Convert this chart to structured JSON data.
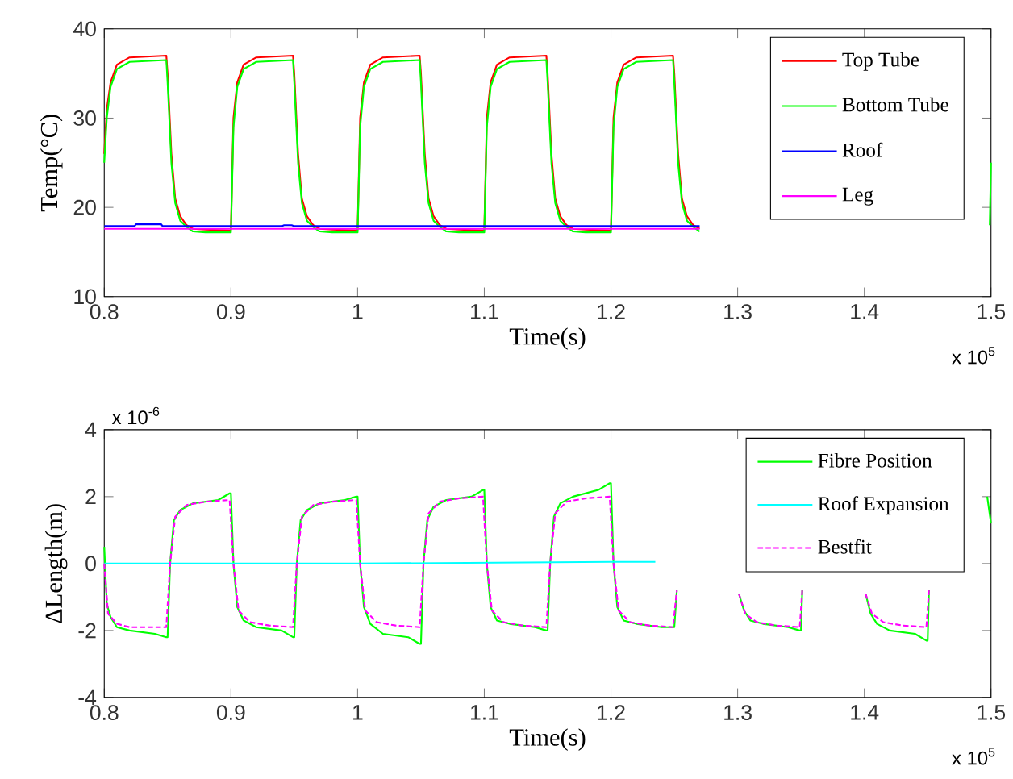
{
  "chart_data": [
    {
      "type": "line",
      "xlabel": "Time(s)",
      "ylabel": "Temp(°C)",
      "xlim": [
        0.8,
        1.5
      ],
      "ylim": [
        10,
        40
      ],
      "xticks": [
        0.8,
        0.9,
        1,
        1.1,
        1.2,
        1.3,
        1.4,
        1.5
      ],
      "yticks": [
        10,
        20,
        30,
        40
      ],
      "legend": "top right",
      "annotations": [
        "x 10$^{5}$"
      ],
      "series": [
        {
          "name": "Top Tube",
          "color": "#ff0000",
          "x": [
            0.8,
            0.802,
            0.805,
            0.81,
            0.82,
            0.849,
            0.85,
            0.853,
            0.856,
            0.86,
            0.865,
            0.87,
            0.88,
            0.899,
            0.9,
            0.902,
            0.905,
            0.91,
            0.92,
            0.949,
            0.95,
            0.953,
            0.956,
            0.96,
            0.965,
            0.97,
            0.98,
            0.999,
            1.0,
            1.002,
            1.005,
            1.01,
            1.02,
            1.049,
            1.05,
            1.053,
            1.056,
            1.06,
            1.065,
            1.07,
            1.08,
            1.099,
            1.1,
            1.102,
            1.105,
            1.11,
            1.12,
            1.149,
            1.15,
            1.153,
            1.156,
            1.16,
            1.165,
            1.17,
            1.18,
            1.199,
            1.2,
            1.202,
            1.205,
            1.21,
            1.22,
            1.249,
            1.25,
            1.253,
            1.256,
            1.26,
            1.265,
            1.27
          ],
          "values": [
            26,
            31,
            34,
            36,
            36.8,
            37,
            35,
            26,
            21,
            19,
            18,
            17.6,
            17.5,
            17.4,
            17.5,
            30,
            34,
            36,
            36.8,
            37,
            35,
            26,
            21,
            19,
            18,
            17.6,
            17.5,
            17.4,
            17.5,
            30,
            34,
            36,
            36.8,
            37,
            35,
            26,
            21,
            19,
            18,
            17.6,
            17.5,
            17.4,
            17.5,
            30,
            34,
            36,
            36.8,
            37,
            35,
            26,
            21,
            19,
            18,
            17.6,
            17.5,
            17.4,
            17.5,
            30,
            34,
            36,
            36.8,
            37,
            35,
            26,
            21,
            19,
            18,
            17.6
          ]
        },
        {
          "name": "Bottom Tube",
          "color": "#00ff00",
          "x": [
            0.8,
            0.802,
            0.805,
            0.81,
            0.82,
            0.849,
            0.85,
            0.853,
            0.856,
            0.86,
            0.865,
            0.87,
            0.88,
            0.899,
            0.9,
            0.902,
            0.905,
            0.91,
            0.92,
            0.949,
            0.95,
            0.953,
            0.956,
            0.96,
            0.965,
            0.97,
            0.98,
            0.999,
            1.0,
            1.002,
            1.005,
            1.01,
            1.02,
            1.049,
            1.05,
            1.053,
            1.056,
            1.06,
            1.065,
            1.07,
            1.08,
            1.099,
            1.1,
            1.102,
            1.105,
            1.11,
            1.12,
            1.149,
            1.15,
            1.153,
            1.156,
            1.16,
            1.165,
            1.17,
            1.18,
            1.199,
            1.2,
            1.202,
            1.205,
            1.21,
            1.22,
            1.249,
            1.25,
            1.253,
            1.256,
            1.26,
            1.265,
            1.27,
            1.28,
            1.499,
            1.5
          ],
          "values": [
            25,
            30,
            33.5,
            35.5,
            36.3,
            36.5,
            34,
            25,
            20.5,
            18.5,
            17.8,
            17.3,
            17.2,
            17.2,
            17.2,
            29,
            33.5,
            35.5,
            36.3,
            36.5,
            34,
            25,
            20.5,
            18.5,
            17.8,
            17.3,
            17.2,
            17.2,
            17.2,
            29,
            33.5,
            35.5,
            36.3,
            36.5,
            34,
            25,
            20.5,
            18.5,
            17.8,
            17.3,
            17.2,
            17.2,
            17.2,
            29,
            33.5,
            35.5,
            36.3,
            36.5,
            34,
            25,
            20.5,
            18.5,
            17.8,
            17.3,
            17.2,
            17.2,
            17.2,
            29,
            33.5,
            35.5,
            36.3,
            36.5,
            34,
            25,
            20.5,
            18.5,
            17.8,
            17.3,
            null,
            18,
            25
          ]
        },
        {
          "name": "Roof",
          "color": "#0000ff",
          "x": [
            0.8,
            0.824,
            0.825,
            0.845,
            0.846,
            0.94,
            0.942,
            0.948,
            0.95,
            1.27
          ],
          "values": [
            17.9,
            17.9,
            18.1,
            18.1,
            17.9,
            17.9,
            18.0,
            18.0,
            17.9,
            17.9
          ]
        },
        {
          "name": "Leg",
          "color": "#ff00ff",
          "x": [
            0.8,
            1.27
          ],
          "values": [
            17.6,
            17.6
          ]
        }
      ]
    },
    {
      "type": "line",
      "xlabel": "Time(s)",
      "ylabel": "ΔLength(m)",
      "xlim": [
        0.8,
        1.5
      ],
      "ylim": [
        -4,
        4
      ],
      "xticks": [
        0.8,
        0.9,
        1,
        1.1,
        1.2,
        1.3,
        1.4,
        1.5
      ],
      "yticks": [
        -4,
        -2,
        0,
        2,
        4
      ],
      "legend": "top right",
      "annotations": [
        "x 10$^{-6}$",
        "x 10$^{5}$"
      ],
      "series": [
        {
          "name": "Fibre Position",
          "color": "#00ff00",
          "x": [
            0.8,
            0.802,
            0.805,
            0.81,
            0.82,
            0.84,
            0.849,
            0.85,
            0.852,
            0.855,
            0.86,
            0.87,
            0.89,
            0.899,
            0.9,
            0.902,
            0.905,
            0.91,
            0.92,
            0.94,
            0.949,
            0.95,
            0.952,
            0.955,
            0.96,
            0.97,
            0.99,
            0.999,
            1.0,
            1.002,
            1.005,
            1.01,
            1.02,
            1.04,
            1.049,
            1.05,
            1.052,
            1.055,
            1.06,
            1.07,
            1.09,
            1.099,
            1.1,
            1.102,
            1.105,
            1.11,
            1.12,
            1.14,
            1.149,
            1.15,
            1.152,
            1.155,
            1.16,
            1.17,
            1.19,
            1.199,
            1.2,
            1.202,
            1.205,
            1.21,
            1.22,
            1.24,
            1.249,
            1.25,
            1.252,
            1.255,
            1.301,
            1.305,
            1.31,
            1.32,
            1.34,
            1.349,
            1.35,
            1.351,
            1.355,
            1.401,
            1.405,
            1.41,
            1.42,
            1.44,
            1.449,
            1.45,
            1.451,
            1.455,
            1.497,
            1.5
          ],
          "values": [
            0.5,
            -1.2,
            -1.6,
            -1.9,
            -2.0,
            -2.1,
            -2.2,
            -2.2,
            0,
            1.3,
            1.6,
            1.8,
            1.9,
            2.1,
            2.1,
            0,
            -1.3,
            -1.7,
            -1.9,
            -2.0,
            -2.2,
            -2.2,
            0,
            1.3,
            1.6,
            1.8,
            1.9,
            2.0,
            2.0,
            0,
            -1.3,
            -1.8,
            -2.1,
            -2.2,
            -2.4,
            -2.4,
            0,
            1.3,
            1.7,
            1.9,
            2.0,
            2.2,
            2.2,
            0,
            -1.3,
            -1.7,
            -1.8,
            -1.9,
            -2.0,
            -2.0,
            0,
            1.4,
            1.8,
            2.0,
            2.2,
            2.4,
            2.4,
            0,
            -1.3,
            -1.7,
            -1.8,
            -1.9,
            -1.9,
            -1.9,
            -0.8,
            null,
            -0.9,
            -1.4,
            -1.7,
            -1.8,
            -1.9,
            -2.0,
            -2.0,
            -0.8,
            null,
            -0.9,
            -1.5,
            -1.8,
            -2.0,
            -2.1,
            -2.3,
            -2.3,
            -0.8,
            null,
            2.0,
            1.2
          ]
        },
        {
          "name": "Roof Expansion",
          "color": "#00ffff",
          "x": [
            0.8,
            1.0,
            1.2,
            1.235
          ],
          "values": [
            0,
            0,
            0.05,
            0.05
          ]
        },
        {
          "name": "Bestfit",
          "color": "#ff00ff",
          "line_style": "dashed",
          "x": [
            0.8,
            0.803,
            0.81,
            0.82,
            0.849,
            0.852,
            0.856,
            0.865,
            0.88,
            0.899,
            0.902,
            0.906,
            0.915,
            0.93,
            0.949,
            0.952,
            0.956,
            0.965,
            0.98,
            0.999,
            1.002,
            1.006,
            1.015,
            1.03,
            1.049,
            1.052,
            1.056,
            1.065,
            1.08,
            1.099,
            1.102,
            1.106,
            1.115,
            1.13,
            1.149,
            1.152,
            1.156,
            1.165,
            1.18,
            1.199,
            1.202,
            1.206,
            1.215,
            1.23,
            1.249,
            1.252,
            1.255,
            1.301,
            1.306,
            1.315,
            1.33,
            1.349,
            1.351,
            1.355,
            1.401,
            1.406,
            1.415,
            1.43,
            1.449,
            1.451
          ],
          "values": [
            0,
            -1.5,
            -1.8,
            -1.9,
            -1.9,
            0,
            1.4,
            1.75,
            1.85,
            1.9,
            0,
            -1.4,
            -1.75,
            -1.85,
            -1.9,
            0,
            1.4,
            1.75,
            1.85,
            1.9,
            0,
            -1.4,
            -1.75,
            -1.85,
            -1.9,
            0,
            1.5,
            1.85,
            1.95,
            2.0,
            0,
            -1.4,
            -1.75,
            -1.85,
            -1.9,
            0,
            1.5,
            1.85,
            1.95,
            2.0,
            0,
            -1.4,
            -1.75,
            -1.85,
            -1.9,
            -0.8,
            null,
            -0.9,
            -1.5,
            -1.75,
            -1.85,
            -1.9,
            -0.8,
            null,
            -0.9,
            -1.5,
            -1.75,
            -1.85,
            -1.9,
            -0.8
          ]
        }
      ]
    }
  ]
}
